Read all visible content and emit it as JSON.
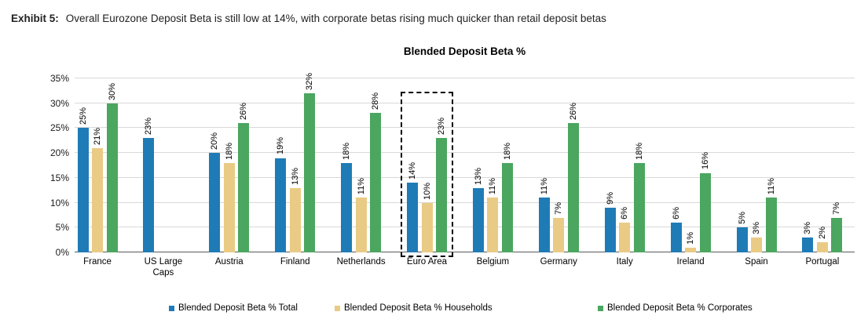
{
  "exhibit": {
    "label": "Exhibit 5:",
    "title": "Overall Eurozone Deposit Beta is still low at 14%, with corporate betas rising much quicker than retail deposit betas"
  },
  "chart_data": {
    "type": "bar",
    "title": "Blended Deposit Beta %",
    "categories": [
      "France",
      "US Large Caps",
      "Austria",
      "Finland",
      "Netherlands",
      "Euro Area",
      "Belgium",
      "Germany",
      "Italy",
      "Ireland",
      "Spain",
      "Portugal"
    ],
    "xtick_labels": [
      "France",
      "US Large\nCaps",
      "Austria",
      "Finland",
      "Netherlands",
      "Euro Area",
      "Belgium",
      "Germany",
      "Italy",
      "Ireland",
      "Spain",
      "Portugal"
    ],
    "series": [
      {
        "name": "Blended Deposit Beta % Total",
        "color": "#1F7BB6",
        "values": [
          25,
          23,
          20,
          19,
          18,
          14,
          13,
          11,
          9,
          6,
          5,
          3
        ]
      },
      {
        "name": "Blended Deposit Beta % Households",
        "color": "#E9CB85",
        "values": [
          21,
          null,
          18,
          13,
          11,
          10,
          11,
          7,
          6,
          1,
          3,
          2
        ]
      },
      {
        "name": "Blended Deposit Beta % Corporates",
        "color": "#4BA65F",
        "values": [
          30,
          null,
          26,
          32,
          28,
          23,
          18,
          26,
          18,
          16,
          11,
          7
        ]
      }
    ],
    "data_label_suffix": "%",
    "ylim": [
      0,
      35
    ],
    "ytick_step": 5,
    "ytick_labels": [
      "0%",
      "5%",
      "10%",
      "15%",
      "20%",
      "25%",
      "30%",
      "35%"
    ],
    "grid": true,
    "legend_position": "bottom",
    "highlight": {
      "category": "Euro Area",
      "style": "dashed-box"
    }
  },
  "colors": {
    "grid": "#d9d9d9",
    "axis": "#5a5a5a",
    "text": "#000000",
    "highlight_border": "#000000"
  }
}
